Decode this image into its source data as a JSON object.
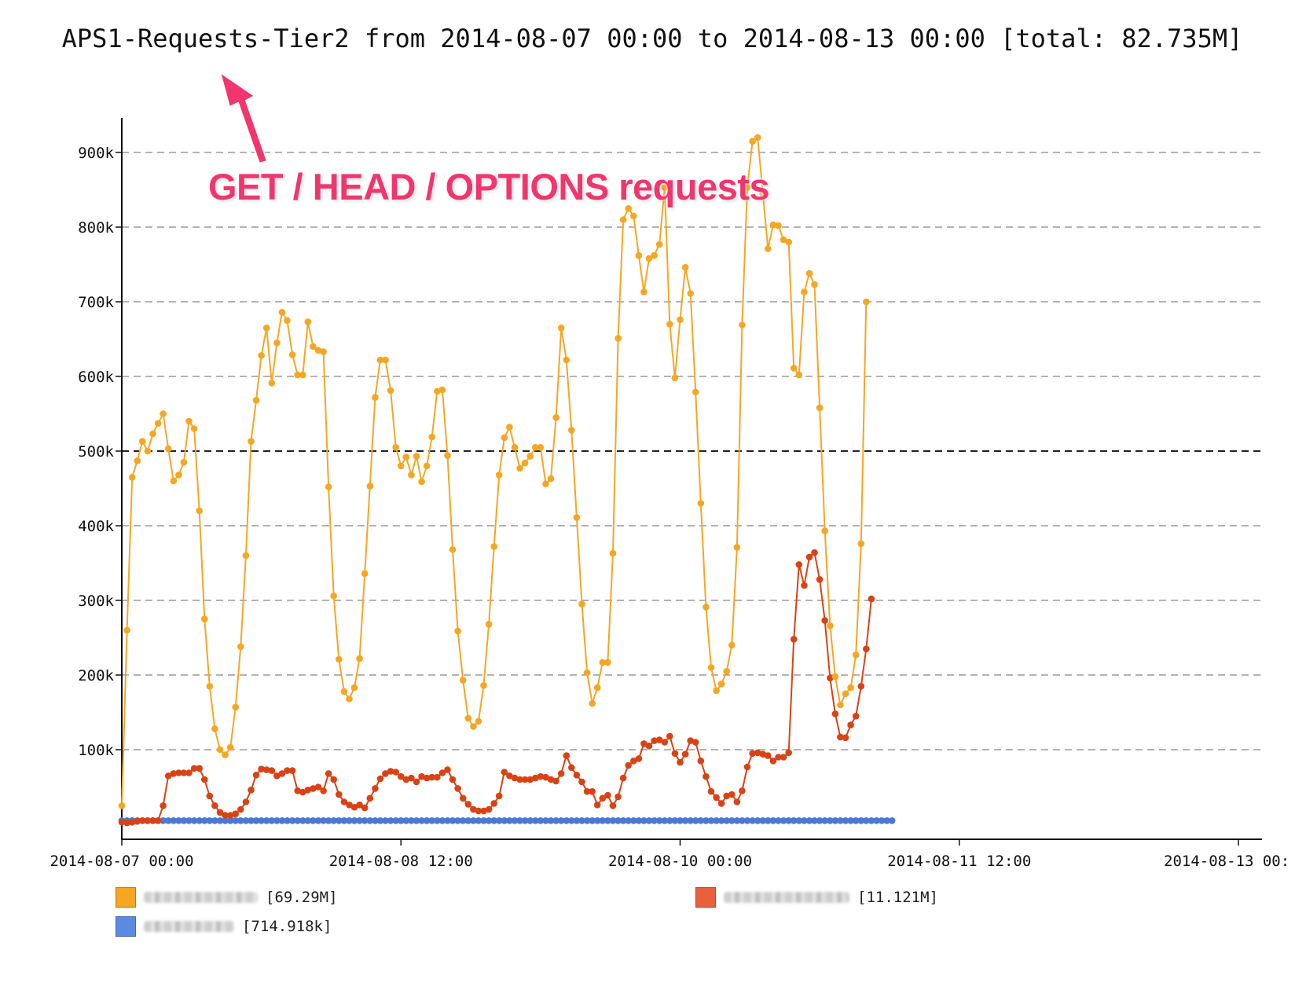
{
  "chart_data": {
    "type": "line",
    "title": "APS1-Requests-Tier2 from 2014-08-07 00:00 to 2014-08-13 00:00 [total: 82.735M]",
    "annotation": "GET / HEAD / OPTIONS requests",
    "xlabel": "",
    "ylabel": "",
    "x_range": [
      "2014-08-07 00:00",
      "2014-08-13 00:00"
    ],
    "x_interval_minutes": 40,
    "x_tick_labels": [
      "2014-08-07 00:00",
      "2014-08-08 12:00",
      "2014-08-10 00:00",
      "2014-08-11 12:00",
      "2014-08-13 00:"
    ],
    "ylim": [
      0,
      920000
    ],
    "y_ticks": [
      100000,
      200000,
      300000,
      400000,
      500000,
      600000,
      700000,
      800000,
      900000
    ],
    "y_tick_labels": [
      "100k",
      "200k",
      "300k",
      "400k",
      "500k",
      "600k",
      "700k",
      "800k",
      "900k"
    ],
    "threshold_line": 500000,
    "grid": true,
    "legend_position": "bottom",
    "series": [
      {
        "total_label": "[69.29M]",
        "color": "#f5a623",
        "values": [
          25000,
          260000,
          465000,
          487000,
          513000,
          500000,
          523000,
          537000,
          550000,
          503000,
          460000,
          468000,
          485000,
          540000,
          530000,
          420000,
          275000,
          185000,
          128000,
          100000,
          93000,
          103000,
          157000,
          238000,
          360000,
          513000,
          568000,
          628000,
          665000,
          591000,
          645000,
          686000,
          675000,
          629000,
          602000,
          602000,
          673000,
          640000,
          635000,
          633000,
          452000,
          306000,
          221000,
          178000,
          168000,
          183000,
          222000,
          336000,
          453000,
          572000,
          622000,
          622000,
          581000,
          505000,
          480000,
          492000,
          468000,
          493000,
          459000,
          480000,
          519000,
          580000,
          582000,
          494000,
          368000,
          259000,
          193000,
          142000,
          131000,
          138000,
          186000,
          268000,
          372000,
          468000,
          518000,
          532000,
          505000,
          477000,
          484000,
          493000,
          505000,
          505000,
          456000,
          463000,
          545000,
          665000,
          622000,
          528000,
          411000,
          295000,
          203000,
          162000,
          183000,
          217000,
          217000,
          363000,
          651000,
          810000,
          825000,
          815000,
          762000,
          713000,
          758000,
          762000,
          777000,
          853000,
          670000,
          598000,
          676000,
          746000,
          711000,
          579000,
          430000,
          291000,
          210000,
          179000,
          188000,
          205000,
          240000,
          371000,
          669000,
          853000,
          915000,
          920000,
          845000,
          771000,
          803000,
          802000,
          783000,
          780000,
          611000,
          602000,
          713000,
          738000,
          723000,
          558000,
          393000,
          266000,
          198000,
          160000,
          175000,
          183000,
          227000,
          376000,
          700000
        ]
      },
      {
        "total_label": "[11.121M]",
        "color": "#d84315",
        "values": [
          3000,
          2000,
          3000,
          4000,
          5000,
          5000,
          5000,
          5000,
          25000,
          65000,
          68000,
          69000,
          69000,
          69000,
          75000,
          75000,
          60000,
          38000,
          25000,
          16000,
          12000,
          12000,
          14000,
          20000,
          30000,
          46000,
          66000,
          74000,
          73000,
          72000,
          65000,
          68000,
          72000,
          72000,
          45000,
          43000,
          46000,
          48000,
          50000,
          45000,
          68000,
          60000,
          40000,
          30000,
          26000,
          23000,
          26000,
          22000,
          35000,
          48000,
          61000,
          68000,
          71000,
          70000,
          64000,
          60000,
          62000,
          57000,
          64000,
          62000,
          63000,
          63000,
          69000,
          73000,
          60000,
          48000,
          35000,
          27000,
          20000,
          18000,
          18000,
          20000,
          28000,
          38000,
          70000,
          65000,
          62000,
          60000,
          60000,
          60000,
          62000,
          64000,
          63000,
          60000,
          58000,
          68000,
          92000,
          76000,
          66000,
          57000,
          44000,
          44000,
          26000,
          35000,
          39000,
          25000,
          37000,
          62000,
          79000,
          85000,
          88000,
          108000,
          105000,
          112000,
          113000,
          110000,
          118000,
          95000,
          83000,
          94000,
          112000,
          110000,
          85000,
          64000,
          44000,
          36000,
          28000,
          38000,
          40000,
          30000,
          45000,
          77000,
          95000,
          96000,
          94000,
          92000,
          85000,
          90000,
          90000,
          96000,
          248000,
          348000,
          320000,
          358000,
          364000,
          328000,
          273000,
          196000,
          148000,
          117000,
          116000,
          133000,
          145000,
          185000,
          235000,
          302000
        ]
      },
      {
        "total_label": "[714.918k]",
        "color": "#4a78d6",
        "values": [
          5000,
          5000,
          5000,
          5000,
          5000,
          5000,
          5000,
          5000,
          5000,
          5000,
          5000,
          5000,
          5000,
          5000,
          5000,
          5000,
          5000,
          5000,
          5000,
          5000,
          5000,
          5000,
          5000,
          5000,
          5000,
          5000,
          5000,
          5000,
          5000,
          5000,
          5000,
          5000,
          5000,
          5000,
          5000,
          5000,
          5000,
          5000,
          5000,
          5000,
          5000,
          5000,
          5000,
          5000,
          5000,
          5000,
          5000,
          5000,
          5000,
          5000,
          5000,
          5000,
          5000,
          5000,
          5000,
          5000,
          5000,
          5000,
          5000,
          5000,
          5000,
          5000,
          5000,
          5000,
          5000,
          5000,
          5000,
          5000,
          5000,
          5000,
          5000,
          5000,
          5000,
          5000,
          5000,
          5000,
          5000,
          5000,
          5000,
          5000,
          5000,
          5000,
          5000,
          5000,
          5000,
          5000,
          5000,
          5000,
          5000,
          5000,
          5000,
          5000,
          5000,
          5000,
          5000,
          5000,
          5000,
          5000,
          5000,
          5000,
          5000,
          5000,
          5000,
          5000,
          5000,
          5000,
          5000,
          5000,
          5000,
          5000,
          5000,
          5000,
          5000,
          5000,
          5000,
          5000,
          5000,
          5000,
          5000,
          5000,
          5000,
          5000,
          5000,
          5000,
          5000,
          5000,
          5000,
          5000,
          5000,
          5000,
          5000,
          5000,
          5000,
          5000,
          5000,
          5000,
          5000,
          5000,
          5000,
          5000,
          5000,
          5000,
          5000,
          5000,
          5000,
          5000,
          5000,
          5000,
          5000,
          5000
        ]
      }
    ]
  }
}
